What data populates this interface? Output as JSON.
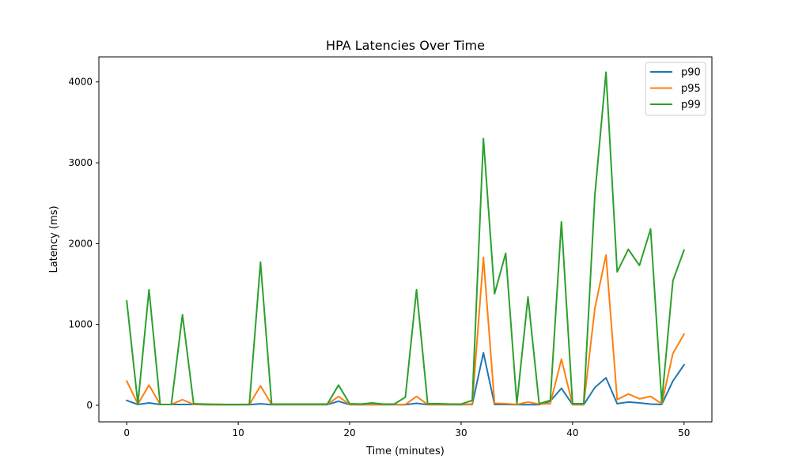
{
  "chart_data": {
    "type": "line",
    "title": "HPA Latencies Over Time",
    "xlabel": "Time (minutes)",
    "ylabel": "Latency (ms)",
    "xlim": [
      -2.5,
      52.5
    ],
    "ylim": [
      -205,
      4310
    ],
    "xticks": [
      0,
      10,
      20,
      30,
      40,
      50
    ],
    "yticks": [
      0,
      1000,
      2000,
      3000,
      4000
    ],
    "legend_position": "upper right",
    "grid": false,
    "x": [
      0,
      1,
      2,
      3,
      4,
      5,
      6,
      7,
      8,
      9,
      10,
      11,
      12,
      13,
      14,
      15,
      16,
      17,
      18,
      19,
      20,
      21,
      22,
      23,
      24,
      25,
      26,
      27,
      28,
      29,
      30,
      31,
      32,
      33,
      34,
      35,
      36,
      37,
      38,
      39,
      40,
      41,
      42,
      43,
      44,
      45,
      46,
      47,
      48,
      49,
      50
    ],
    "series": [
      {
        "name": "p90",
        "color": "#1f77b4",
        "values": [
          60,
          10,
          30,
          10,
          10,
          10,
          10,
          8,
          8,
          8,
          8,
          8,
          18,
          8,
          8,
          8,
          8,
          8,
          8,
          50,
          8,
          8,
          8,
          8,
          8,
          8,
          25,
          8,
          8,
          8,
          8,
          10,
          650,
          10,
          10,
          8,
          8,
          8,
          50,
          210,
          8,
          8,
          220,
          340,
          20,
          40,
          30,
          15,
          10,
          300,
          500
        ]
      },
      {
        "name": "p95",
        "color": "#ff7f0e",
        "values": [
          300,
          15,
          250,
          10,
          10,
          70,
          10,
          10,
          8,
          8,
          8,
          8,
          240,
          10,
          10,
          10,
          10,
          10,
          10,
          110,
          10,
          10,
          10,
          10,
          10,
          10,
          110,
          10,
          10,
          10,
          10,
          15,
          1830,
          25,
          20,
          10,
          40,
          15,
          20,
          570,
          10,
          10,
          1200,
          1860,
          70,
          140,
          80,
          110,
          20,
          640,
          880
        ]
      },
      {
        "name": "p99",
        "color": "#2ca02c",
        "values": [
          1290,
          20,
          1430,
          10,
          10,
          1120,
          20,
          15,
          12,
          10,
          10,
          12,
          1770,
          15,
          15,
          15,
          15,
          15,
          15,
          250,
          20,
          15,
          30,
          15,
          15,
          100,
          1430,
          20,
          20,
          15,
          15,
          60,
          3300,
          1380,
          1880,
          20,
          1340,
          20,
          60,
          2270,
          20,
          20,
          2600,
          4120,
          1650,
          1930,
          1730,
          2180,
          40,
          1540,
          1920
        ]
      }
    ]
  }
}
